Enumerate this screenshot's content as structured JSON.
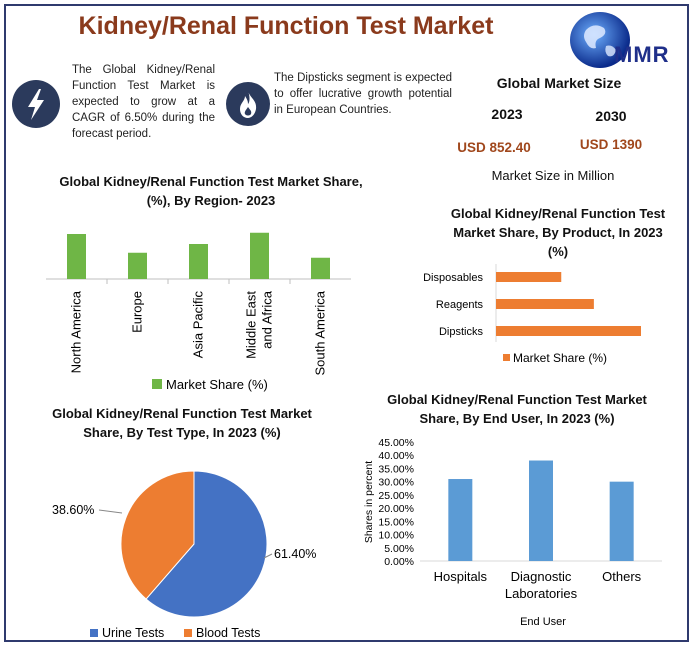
{
  "title": "Kidney/Renal Function Test Market",
  "logo_text": "MMR",
  "blurb1": "The Global Kidney/Renal Function Test Market is expected to grow at a CAGR of 6.50% during the forecast period.",
  "blurb2": "The Dipsticks segment is expected to offer lucrative growth potential in European Countries.",
  "market_size": {
    "heading": "Global Market Size",
    "year1": "2023",
    "year2": "2030",
    "value1": "USD 852.40",
    "value2": "USD 1390",
    "note": "Market Size in Million"
  },
  "icons": {
    "blurb1": "lightning-icon",
    "blurb2": "flame-icon",
    "logo": "globe-icon"
  },
  "colors": {
    "title": "#8a3a1c",
    "green": "#6fb646",
    "orange": "#ed7d31",
    "blue": "#4472c4",
    "lightblue": "#5b9bd5",
    "navy": "#2b3a5c"
  },
  "chart_data": [
    {
      "type": "bar",
      "title": "Global Kidney/Renal Function Test Market Share, (%), By Region- 2023",
      "categories": [
        "North America",
        "Europe",
        "Asia Pacific",
        "Middle East and Africa",
        "South America"
      ],
      "series": [
        {
          "name": "Market Share (%)",
          "values": [
            36,
            21,
            28,
            37,
            17
          ]
        }
      ],
      "ylim": [
        0,
        40
      ],
      "legend": "bottom"
    },
    {
      "type": "bar",
      "orientation": "horizontal",
      "title": "Global Kidney/Renal Function Test Market Share, By Product, In 2023 (%)",
      "categories": [
        "Disposables",
        "Reagents",
        "Dipsticks"
      ],
      "series": [
        {
          "name": "Market Share (%)",
          "values": [
            18,
            27,
            40
          ]
        }
      ],
      "xlim": [
        0,
        40
      ],
      "legend": "bottom"
    },
    {
      "type": "pie",
      "title": "Global Kidney/Renal Function Test Market Share, By Test Type, In 2023 (%)",
      "labels": [
        "Urine Tests",
        "Blood Tests"
      ],
      "values": [
        61.4,
        38.6
      ],
      "value_labels": [
        "61.40%",
        "38.60%"
      ],
      "legend": "bottom"
    },
    {
      "type": "bar",
      "title": "Global Kidney/Renal Function Test Market Share, By End User, In 2023 (%)",
      "categories": [
        "Hospitals",
        "Diagnostic Laboratories",
        "Others"
      ],
      "values": [
        31,
        38,
        30
      ],
      "ylabel": "Shares in percent",
      "xlabel": "End User",
      "ylim": [
        0,
        45
      ],
      "yticks": [
        "0.00%",
        "5.00%",
        "10.00%",
        "15.00%",
        "20.00%",
        "25.00%",
        "30.00%",
        "35.00%",
        "40.00%",
        "45.00%"
      ],
      "grid": false
    }
  ]
}
